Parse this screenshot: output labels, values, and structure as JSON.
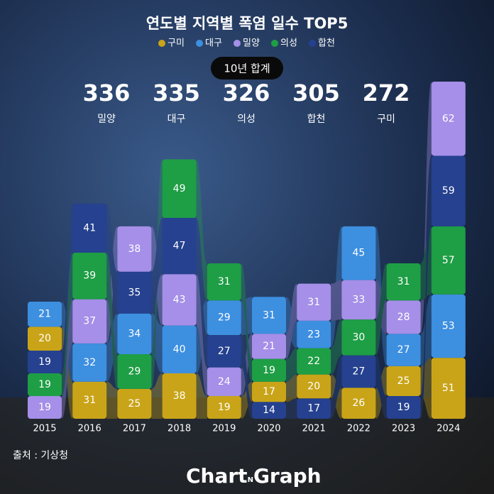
{
  "chart_data": {
    "type": "bar",
    "stacking": "ranked",
    "title": "연도별 지역별 폭염 일수 TOP5",
    "categories": [
      "2015",
      "2016",
      "2017",
      "2018",
      "2019",
      "2020",
      "2021",
      "2022",
      "2023",
      "2024"
    ],
    "series": [
      {
        "name": "구미",
        "color": "#c9a418",
        "values": [
          20,
          31,
          25,
          38,
          19,
          17,
          20,
          26,
          25,
          51
        ]
      },
      {
        "name": "대구",
        "color": "#3d8fe0",
        "values": [
          21,
          32,
          34,
          40,
          29,
          31,
          23,
          45,
          27,
          53
        ]
      },
      {
        "name": "밀양",
        "color": "#a58fe8",
        "values": [
          19,
          37,
          38,
          43,
          24,
          21,
          31,
          33,
          28,
          62
        ]
      },
      {
        "name": "의성",
        "color": "#1e9e45",
        "values": [
          19,
          39,
          29,
          49,
          31,
          19,
          22,
          30,
          31,
          57
        ]
      },
      {
        "name": "합천",
        "color": "#25418f",
        "values": [
          19,
          41,
          35,
          47,
          27,
          14,
          17,
          27,
          19,
          59
        ]
      }
    ],
    "ylim": [
      0,
      285
    ],
    "totals_label": "10년 합계",
    "totals": [
      {
        "value": 336,
        "name": "밀양"
      },
      {
        "value": 335,
        "name": "대구"
      },
      {
        "value": 326,
        "name": "의성"
      },
      {
        "value": 305,
        "name": "합천"
      },
      {
        "value": 272,
        "name": "구미"
      }
    ],
    "source": "출처 : 기상청",
    "brand": [
      "Chart",
      "N",
      "Graph"
    ]
  }
}
